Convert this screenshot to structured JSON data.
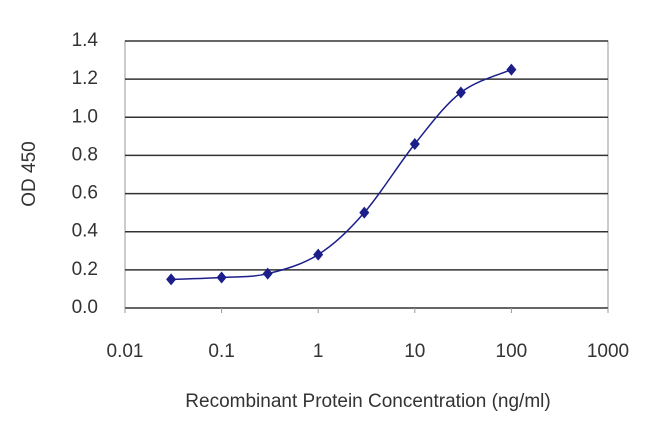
{
  "chart_data": {
    "type": "scatter",
    "x_label": "Recombinant Protein Concentration (ng/ml)",
    "y_label": "OD 450",
    "x_log": true,
    "grid": true,
    "xlim": [
      0.01,
      1000
    ],
    "xticks": [
      0.01,
      0.1,
      1,
      10,
      100,
      1000
    ],
    "ylim": [
      0,
      1.4
    ],
    "yticks": [
      {
        "value": 0,
        "label": "0.0"
      },
      0.2,
      0.4,
      0.6,
      0.8,
      {
        "value": 1,
        "label": "1.0"
      },
      1.2,
      1.4
    ],
    "series": [
      {
        "color": "#1c1f8a",
        "x": [
          0.03,
          0.1,
          0.3,
          1,
          3,
          10,
          30,
          100
        ],
        "values": [
          0.15,
          0.16,
          0.18,
          0.28,
          0.5,
          0.86,
          1.13,
          1.25
        ]
      }
    ]
  }
}
